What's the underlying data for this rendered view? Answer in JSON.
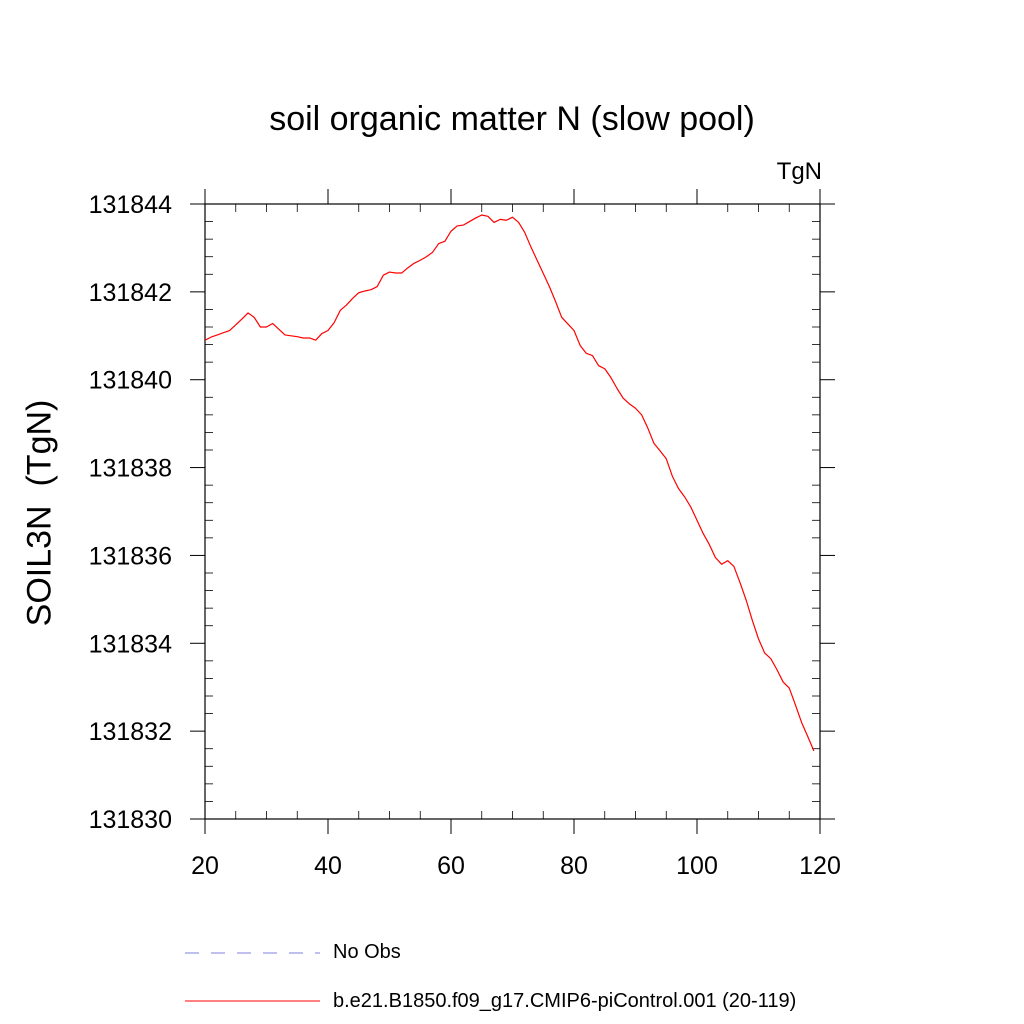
{
  "chart_data": {
    "type": "line",
    "title": "soil organic matter N (slow pool)",
    "units": "TgN",
    "ylabel": "SOIL3N  (TgN)",
    "xlabel": "",
    "xlim": [
      20,
      120
    ],
    "ylim": [
      131830,
      131844
    ],
    "xticks": [
      20,
      40,
      60,
      80,
      100,
      120
    ],
    "yticks": [
      131830,
      131832,
      131834,
      131836,
      131838,
      131840,
      131842,
      131844
    ],
    "series": [
      {
        "name": "b.e21.B1850.f09_g17.CMIP6-piControl.001 (20-119)",
        "color": "#ff0000",
        "x": [
          20,
          21,
          22,
          23,
          24,
          25,
          26,
          27,
          28,
          29,
          30,
          31,
          32,
          33,
          34,
          35,
          36,
          37,
          38,
          39,
          40,
          41,
          42,
          43,
          44,
          45,
          46,
          47,
          48,
          49,
          50,
          51,
          52,
          53,
          54,
          55,
          56,
          57,
          58,
          59,
          60,
          61,
          62,
          63,
          64,
          65,
          66,
          67,
          68,
          69,
          70,
          71,
          72,
          73,
          74,
          75,
          76,
          77,
          78,
          79,
          80,
          81,
          82,
          83,
          84,
          85,
          86,
          87,
          88,
          89,
          90,
          91,
          92,
          93,
          94,
          95,
          96,
          97,
          98,
          99,
          100,
          101,
          102,
          103,
          104,
          105,
          106,
          107,
          108,
          109,
          110,
          111,
          112,
          113,
          114,
          115,
          116,
          117,
          118,
          119
        ],
        "y": [
          131840.9,
          131840.97,
          131841.02,
          131841.07,
          131841.12,
          131841.25,
          131841.38,
          131841.52,
          131841.42,
          131841.2,
          131841.2,
          131841.28,
          131841.15,
          131841.02,
          131841.0,
          131840.98,
          131840.95,
          131840.95,
          131840.9,
          131841.05,
          131841.12,
          131841.3,
          131841.58,
          131841.7,
          131841.85,
          131841.98,
          131842.02,
          131842.05,
          131842.12,
          131842.38,
          131842.45,
          131842.43,
          131842.43,
          131842.55,
          131842.65,
          131842.72,
          131842.8,
          131842.9,
          131843.1,
          131843.15,
          131843.38,
          131843.5,
          131843.52,
          131843.6,
          131843.68,
          131843.75,
          131843.72,
          131843.58,
          131843.65,
          131843.63,
          131843.7,
          131843.58,
          131843.35,
          131843.02,
          131842.72,
          131842.42,
          131842.12,
          131841.78,
          131841.42,
          131841.27,
          131841.12,
          131840.78,
          131840.6,
          131840.55,
          131840.32,
          131840.25,
          131840.05,
          131839.8,
          131839.58,
          131839.45,
          131839.35,
          131839.2,
          131838.9,
          131838.55,
          131838.38,
          131838.2,
          131837.8,
          131837.52,
          131837.33,
          131837.1,
          131836.8,
          131836.5,
          131836.25,
          131835.95,
          131835.8,
          131835.88,
          131835.75,
          131835.38,
          131834.98,
          131834.52,
          131834.1,
          131833.78,
          131833.65,
          131833.4,
          131833.12,
          131832.98,
          131832.6,
          131832.2,
          131831.88,
          131831.55
        ]
      }
    ],
    "legend": [
      {
        "label": "No Obs",
        "style": "dashed",
        "color": "#8080e0"
      },
      {
        "label": "b.e21.B1850.f09_g17.CMIP6-piControl.001 (20-119)",
        "style": "solid",
        "color": "#ff0000"
      }
    ]
  }
}
